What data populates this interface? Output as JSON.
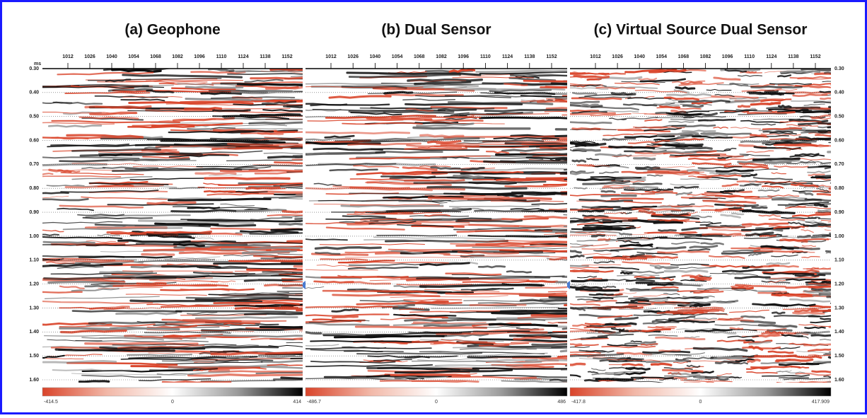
{
  "depth_unit": "ms",
  "time_labels": [
    "0.30",
    "0.40",
    "0.50",
    "0.60",
    "0.70",
    "0.80",
    "0.90",
    "1.00",
    "1.10",
    "1.20",
    "1.30",
    "1.40",
    "1.50",
    "1.60"
  ],
  "panels": [
    {
      "title": "(a) Geophone",
      "trace_labels": [
        "1012",
        "1026",
        "1040",
        "1054",
        "1068",
        "1082",
        "1096",
        "1110",
        "1124",
        "1138",
        "1152"
      ],
      "colorbar": {
        "min": "-414.5",
        "mid": "0",
        "max": "414"
      }
    },
    {
      "title": "(b) Dual Sensor",
      "trace_labels": [
        "1012",
        "1026",
        "1040",
        "1054",
        "1068",
        "1082",
        "1096",
        "1110",
        "1124",
        "1138",
        "1152"
      ],
      "colorbar": {
        "min": "-486.7",
        "mid": "0",
        "max": "486"
      }
    },
    {
      "title": "(c) Virtual Source Dual Sensor",
      "trace_labels": [
        "1012",
        "1026",
        "1040",
        "1054",
        "1068",
        "1082",
        "1096",
        "1110",
        "1124",
        "1138",
        "1152"
      ],
      "colorbar": {
        "min": "-417.8",
        "mid": "0",
        "max": "417.909"
      }
    }
  ]
}
